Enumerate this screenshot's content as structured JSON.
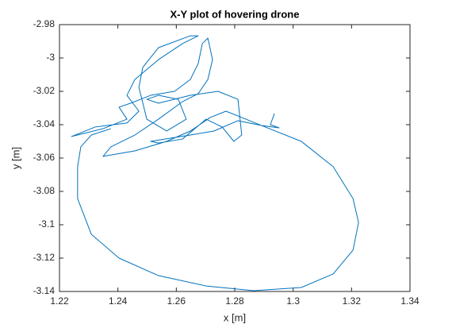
{
  "chart_data": {
    "type": "line",
    "title": "X-Y plot of hovering drone",
    "xlabel": "x [m]",
    "ylabel": "y [m]",
    "x": [
      1.2936,
      1.2922,
      1.2952,
      1.2892,
      1.2824,
      1.277,
      1.2716,
      1.2648,
      1.2567,
      1.2458,
      1.2349,
      1.2376,
      1.2458,
      1.2539,
      1.2621,
      1.2675,
      1.2708,
      1.2724,
      1.2708,
      1.2689,
      1.2675,
      1.2648,
      1.2594,
      1.2512,
      1.2444,
      1.2404,
      1.2431,
      1.2349,
      1.2241,
      1.2322,
      1.2431,
      1.2472,
      1.2431,
      1.2458,
      1.2539,
      1.2621,
      1.2675,
      1.2648,
      1.2539,
      1.2485,
      1.2472,
      1.2499,
      1.2567,
      1.2634,
      1.2607,
      1.2539,
      1.2499,
      1.2539,
      1.2648,
      1.2743,
      1.2811,
      1.2824,
      1.2797,
      1.2757,
      1.2702,
      1.2621,
      1.2539,
      1.2512,
      1.2648,
      1.2729,
      1.2811,
      1.2892,
      1.3028,
      1.3137,
      1.3205,
      1.3224,
      1.3205,
      1.3137,
      1.3028,
      1.2865,
      1.2702,
      1.2539,
      1.2404,
      1.2309,
      1.2262,
      1.2262,
      1.2273,
      1.2309,
      1.2376
    ],
    "series": [
      {
        "color": "#0072bd",
        "values": [
          -3.0333,
          -3.04,
          -3.0419,
          -3.0405,
          -3.0357,
          -3.0319,
          -3.0357,
          -3.0438,
          -3.05,
          -3.0557,
          -3.059,
          -3.0533,
          -3.0462,
          -3.0367,
          -3.0262,
          -3.0214,
          -3.0129,
          -3.001,
          -2.9881,
          -2.9914,
          -3.0033,
          -3.0129,
          -3.02,
          -3.0224,
          -3.0271,
          -3.0295,
          -3.0367,
          -3.0424,
          -3.0471,
          -3.0414,
          -3.039,
          -3.0319,
          -3.0224,
          -3.0129,
          -3.001,
          -2.9914,
          -2.9867,
          -2.9867,
          -2.9938,
          -3.0057,
          -3.0176,
          -3.0367,
          -3.0438,
          -3.0367,
          -3.0248,
          -3.0224,
          -3.0248,
          -3.0271,
          -3.0224,
          -3.02,
          -3.0248,
          -3.0462,
          -3.05,
          -3.0414,
          -3.0367,
          -3.0486,
          -3.051,
          -3.05,
          -3.0462,
          -3.0438,
          -3.0376,
          -3.0405,
          -3.05,
          -3.0652,
          -3.0843,
          -3.0986,
          -3.1152,
          -3.1295,
          -3.1376,
          -3.1395,
          -3.1367,
          -3.1305,
          -3.12,
          -3.1057,
          -3.0843,
          -3.0652,
          -3.0533,
          -3.0462,
          -3.0424
        ]
      }
    ],
    "xlim": [
      1.22,
      1.34
    ],
    "ylim": [
      -3.14,
      -2.98
    ],
    "xticks": [
      1.22,
      1.24,
      1.26,
      1.28,
      1.3,
      1.32,
      1.34
    ],
    "yticks": [
      -3.14,
      -3.12,
      -3.1,
      -3.08,
      -3.06,
      -3.04,
      -3.02,
      -3,
      -2.98
    ],
    "box": true,
    "grid": false
  }
}
